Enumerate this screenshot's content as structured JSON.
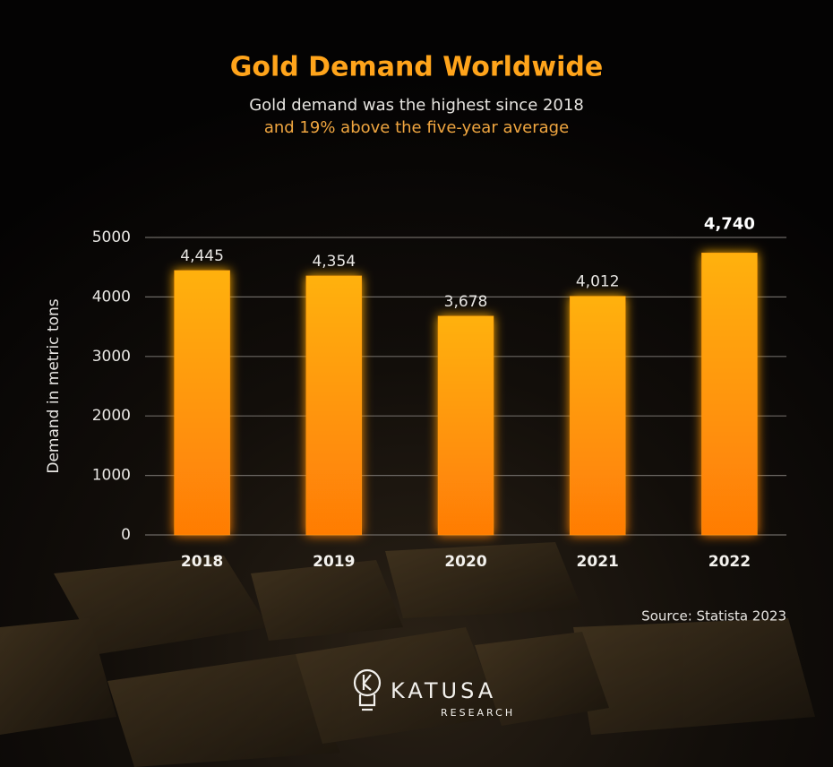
{
  "chart_data": {
    "type": "bar",
    "title": "Gold Demand Worldwide",
    "subtitle": [
      "Gold demand was the highest since 2018",
      "and 19% above the five-year average"
    ],
    "y_axis_label": "Demand in metric tons",
    "categories": [
      "2018",
      "2019",
      "2020",
      "2021",
      "2022"
    ],
    "values": [
      4445,
      4354,
      3678,
      4012,
      4740
    ],
    "value_labels": [
      "4,445",
      "4,354",
      "3,678",
      "4,012",
      "4,740"
    ],
    "color": "#ff9a0a",
    "ylim": [
      0,
      5000
    ],
    "yticks": [
      0,
      1000,
      2000,
      3000,
      4000,
      5000
    ],
    "grid": true,
    "source": "Source: Statista 2023"
  },
  "brand": {
    "name": "KATUSA",
    "tagline": "RESEARCH"
  }
}
